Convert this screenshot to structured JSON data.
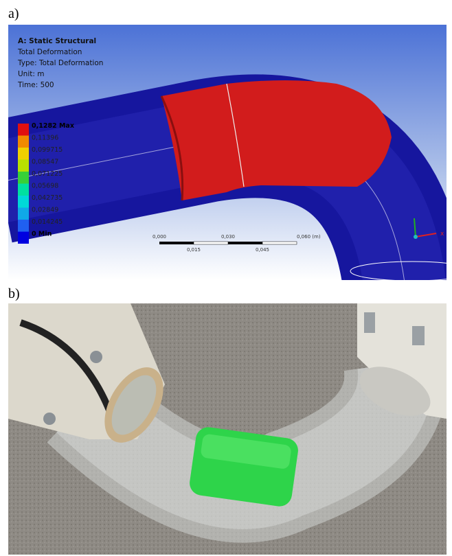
{
  "panel_a": {
    "label": "a)",
    "header": [
      "A: Static Structural",
      "Total Deformation",
      "Type: Total Deformation",
      "Unit: m",
      "Time: 500"
    ],
    "legend": [
      {
        "label": "0,1282 Max",
        "color": "#e01010"
      },
      {
        "label": "0,11396",
        "color": "#f08a00"
      },
      {
        "label": "0,099715",
        "color": "#f0d000"
      },
      {
        "label": "0,08547",
        "color": "#b8e000"
      },
      {
        "label": "0,071225",
        "color": "#38d038"
      },
      {
        "label": "0,05698",
        "color": "#00e0a0"
      },
      {
        "label": "0,042735",
        "color": "#00d8d8"
      },
      {
        "label": "0,02849",
        "color": "#10a8e8"
      },
      {
        "label": "0,014245",
        "color": "#2060f0"
      },
      {
        "label": "0 Min",
        "color": "#0000e0"
      }
    ],
    "scale_top": [
      "0,000",
      "0,030",
      "0,060 (m)"
    ],
    "scale_bottom": [
      "0,015",
      "0,045"
    ],
    "axis_x": "x"
  },
  "panel_b": {
    "label": "b)"
  }
}
